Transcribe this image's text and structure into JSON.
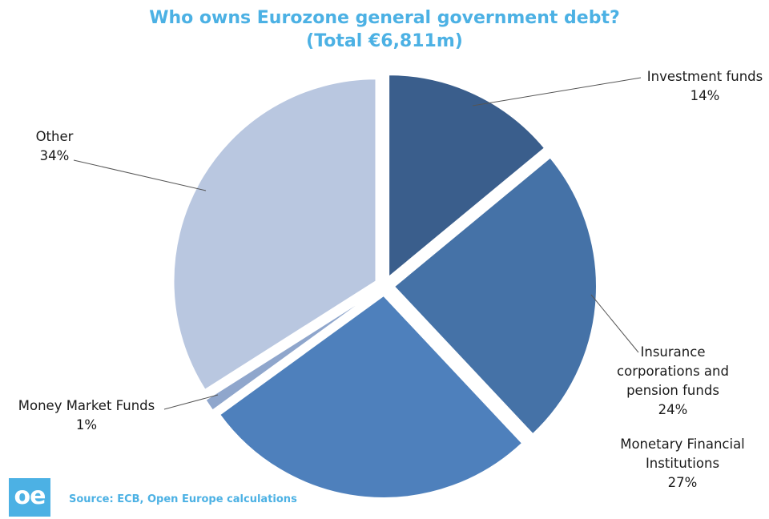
{
  "chart_data": {
    "type": "pie",
    "title": "Who owns Eurozone general government debt?",
    "subtitle": "(Total €6,811m)",
    "slices": [
      {
        "label": "Investment funds",
        "label_lines": [
          "Investment funds"
        ],
        "value": 14,
        "value_label": "14%",
        "color": "#3a5e8c"
      },
      {
        "label": "Insurance corporations and pension funds",
        "label_lines": [
          "Insurance",
          "corporations and",
          "pension funds"
        ],
        "value": 24,
        "value_label": "24%",
        "color": "#4572a7"
      },
      {
        "label": "Monetary Financial Institutions",
        "label_lines": [
          "Monetary Financial",
          "Institutions"
        ],
        "value": 27,
        "value_label": "27%",
        "color": "#4e80bc"
      },
      {
        "label": "Money Market Funds",
        "label_lines": [
          "Money Market Funds"
        ],
        "value": 1,
        "value_label": "1%",
        "color": "#8fa6cc"
      },
      {
        "label": "Other",
        "label_lines": [
          "Other"
        ],
        "value": 34,
        "value_label": "34%",
        "color": "#b9c7e0"
      }
    ]
  },
  "footer": {
    "logo_text": "oe",
    "source": "Source: ECB, Open Europe calculations"
  },
  "colors": {
    "accent": "#4cb1e4"
  }
}
